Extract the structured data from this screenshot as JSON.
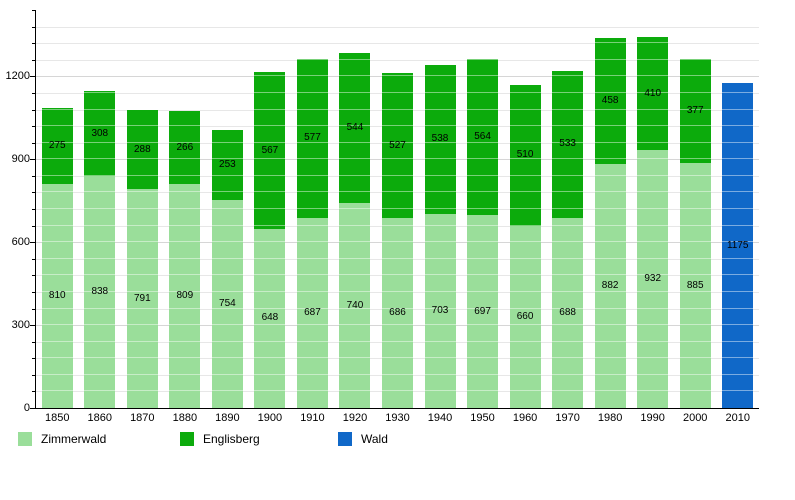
{
  "chart_data": {
    "type": "bar",
    "stacked": true,
    "title": "",
    "xlabel": "",
    "ylabel": "",
    "categories": [
      "1850",
      "1860",
      "1870",
      "1880",
      "1890",
      "1900",
      "1910",
      "1920",
      "1930",
      "1940",
      "1950",
      "1960",
      "1970",
      "1980",
      "1990",
      "2000",
      "2010"
    ],
    "series": [
      {
        "name": "Zimmerwald",
        "color": "#9ade9a",
        "values": [
          810,
          838,
          791,
          809,
          754,
          648,
          687,
          740,
          686,
          703,
          697,
          660,
          688,
          882,
          932,
          885,
          null
        ]
      },
      {
        "name": "Englisberg",
        "color": "#0cab0c",
        "values": [
          275,
          308,
          288,
          266,
          253,
          567,
          577,
          544,
          527,
          538,
          564,
          510,
          533,
          458,
          410,
          377,
          null
        ]
      },
      {
        "name": "Wald",
        "color": "#1068c8",
        "values": [
          null,
          null,
          null,
          null,
          null,
          null,
          null,
          null,
          null,
          null,
          null,
          null,
          null,
          null,
          null,
          null,
          1175
        ]
      }
    ],
    "totals": [
      1085,
      1146,
      1079,
      1075,
      1007,
      1215,
      1264,
      1284,
      1213,
      1241,
      1261,
      1170,
      1221,
      1340,
      1342,
      1262,
      1175
    ],
    "ylim": [
      0,
      1440
    ],
    "y_major_step": 300,
    "y_minor_step": 60,
    "y_tick_values": [
      0,
      300,
      600,
      900,
      1200
    ],
    "y_tick_labels": [
      "0",
      "300",
      "600",
      "900",
      "1200"
    ],
    "grid": true,
    "value_labels": true,
    "legend_position": "bottom"
  },
  "colors": {
    "background": "#ffffff",
    "axis": "#000000",
    "grid_minor": "#e7e7e7",
    "grid_major": "#d6d6d6",
    "bar_stripe_overlay": "rgba(255,255,255,0.45)",
    "label_text": "#000000"
  }
}
